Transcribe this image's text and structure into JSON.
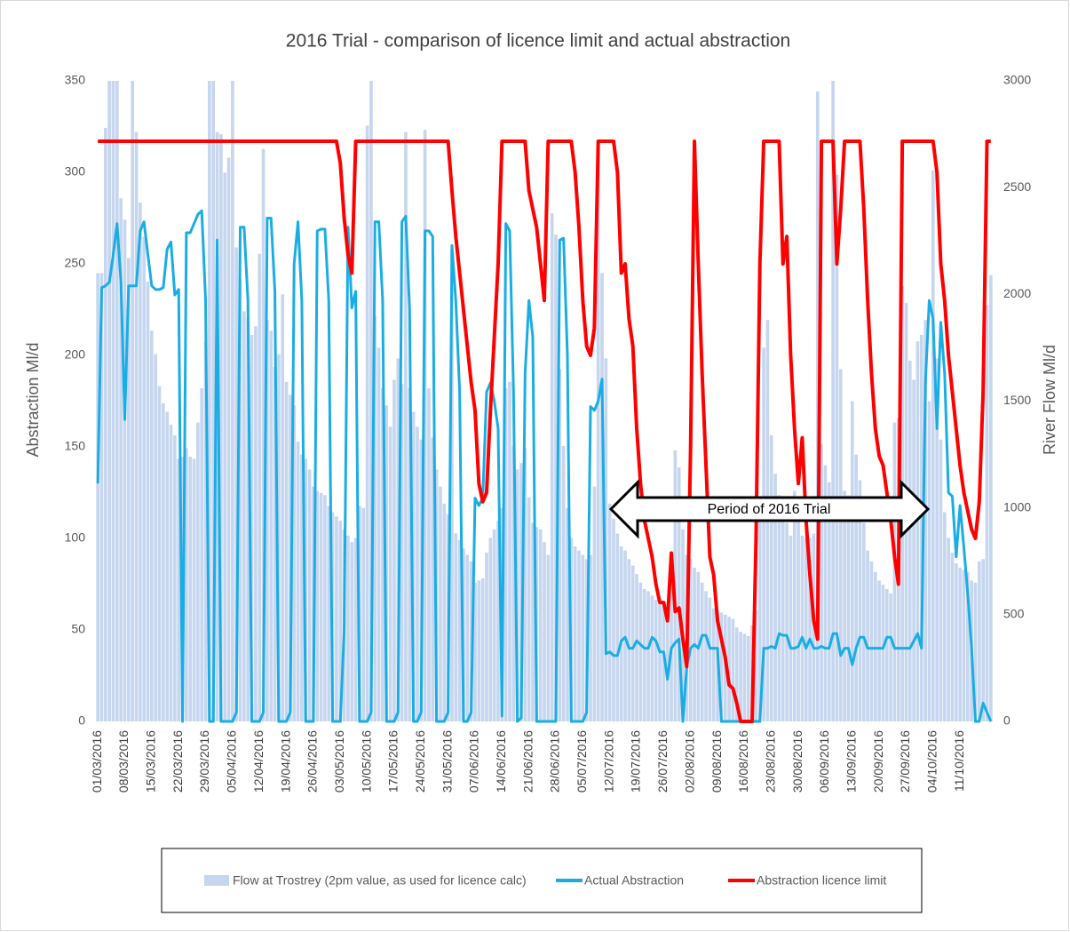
{
  "chart_data": {
    "type": "combo",
    "title": "2016 Trial - comparison of licence limit and actual abstraction",
    "ylabel": "Abstraction Ml/d",
    "y2label": "River Flow Ml/d",
    "annotation": "Period of 2016 Trial",
    "grid": false,
    "ylim": [
      0,
      350
    ],
    "yticks": [
      0,
      50,
      100,
      150,
      200,
      250,
      300,
      350
    ],
    "y2lim": [
      0,
      3000
    ],
    "y2ticks": [
      0,
      500,
      1000,
      1500,
      2000,
      2500,
      3000
    ],
    "categories": [
      "01/03/2016",
      null,
      null,
      null,
      null,
      null,
      null,
      "08/03/2016",
      null,
      null,
      null,
      null,
      null,
      null,
      "15/03/2016",
      null,
      null,
      null,
      null,
      null,
      null,
      "22/03/2016",
      null,
      null,
      null,
      null,
      null,
      null,
      "29/03/2016",
      null,
      null,
      null,
      null,
      null,
      null,
      "05/04/2016",
      null,
      null,
      null,
      null,
      null,
      null,
      "12/04/2016",
      null,
      null,
      null,
      null,
      null,
      null,
      "19/04/2016",
      null,
      null,
      null,
      null,
      null,
      null,
      "26/04/2016",
      null,
      null,
      null,
      null,
      null,
      null,
      "03/05/2016",
      null,
      null,
      null,
      null,
      null,
      null,
      "10/05/2016",
      null,
      null,
      null,
      null,
      null,
      null,
      "17/05/2016",
      null,
      null,
      null,
      null,
      null,
      null,
      "24/05/2016",
      null,
      null,
      null,
      null,
      null,
      null,
      "31/05/2016",
      null,
      null,
      null,
      null,
      null,
      null,
      "07/06/2016",
      null,
      null,
      null,
      null,
      null,
      null,
      "14/06/2016",
      null,
      null,
      null,
      null,
      null,
      null,
      "21/06/2016",
      null,
      null,
      null,
      null,
      null,
      null,
      "28/06/2016",
      null,
      null,
      null,
      null,
      null,
      null,
      "05/07/2016",
      null,
      null,
      null,
      null,
      null,
      null,
      "12/07/2016",
      null,
      null,
      null,
      null,
      null,
      null,
      "19/07/2016",
      null,
      null,
      null,
      null,
      null,
      null,
      "26/07/2016",
      null,
      null,
      null,
      null,
      null,
      null,
      "02/08/2016",
      null,
      null,
      null,
      null,
      null,
      null,
      "09/08/2016",
      null,
      null,
      null,
      null,
      null,
      null,
      "16/08/2016",
      null,
      null,
      null,
      null,
      null,
      null,
      "23/08/2016",
      null,
      null,
      null,
      null,
      null,
      null,
      "30/08/2016",
      null,
      null,
      null,
      null,
      null,
      null,
      "06/09/2016",
      null,
      null,
      null,
      null,
      null,
      null,
      "13/09/2016",
      null,
      null,
      null,
      null,
      null,
      null,
      "20/09/2016",
      null,
      null,
      null,
      null,
      null,
      null,
      "27/09/2016",
      null,
      null,
      null,
      null,
      null,
      null,
      "04/10/2016",
      null,
      null,
      null,
      null,
      null,
      null,
      "11/10/2016",
      null,
      null,
      null,
      null,
      null,
      null,
      null,
      null
    ],
    "series": [
      {
        "name": "Flow at Trostrey (2pm value, as used for licence calc)",
        "type": "bar",
        "axis": "y2",
        "color": "#c6d6ef",
        "values": [
          2100,
          2100,
          2780,
          3000,
          3000,
          3000,
          2450,
          2350,
          2170,
          3000,
          2760,
          2430,
          2270,
          2060,
          1830,
          1720,
          1570,
          1490,
          1450,
          1390,
          1340,
          1230,
          1240,
          1280,
          1240,
          1230,
          1400,
          1560,
          1780,
          3000,
          3000,
          2760,
          2750,
          2570,
          2640,
          3000,
          2220,
          2070,
          1920,
          1890,
          1810,
          1850,
          2190,
          2680,
          1880,
          1830,
          1660,
          1720,
          2000,
          1590,
          1530,
          1480,
          1310,
          1250,
          1230,
          1180,
          1100,
          1080,
          1070,
          1060,
          1010,
          980,
          960,
          940,
          900,
          870,
          840,
          860,
          1010,
          1000,
          2790,
          3000,
          1900,
          1750,
          1560,
          1480,
          1380,
          1600,
          1700,
          1580,
          2760,
          1560,
          1450,
          1380,
          1320,
          2770,
          1560,
          1330,
          1180,
          1100,
          1020,
          970,
          2210,
          880,
          850,
          810,
          780,
          750,
          650,
          660,
          670,
          790,
          860,
          900,
          940,
          1000,
          1560,
          1590,
          1290,
          1180,
          1210,
          1280,
          1050,
          930,
          910,
          900,
          840,
          780,
          2380,
          2280,
          1650,
          1290,
          1000,
          860,
          820,
          800,
          780,
          760,
          780,
          1100,
          2700,
          2100,
          1700,
          1020,
          950,
          880,
          820,
          800,
          760,
          730,
          690,
          650,
          620,
          610,
          590,
          570,
          560,
          540,
          530,
          660,
          1270,
          1190,
          900,
          780,
          760,
          720,
          700,
          650,
          610,
          580,
          530,
          520,
          510,
          500,
          490,
          480,
          440,
          420,
          410,
          400,
          450,
          520,
          1040,
          1750,
          1880,
          1340,
          1160,
          1060,
          980,
          930,
          870,
          1080,
          1010,
          870,
          860,
          860,
          880,
          2950,
          1300,
          1200,
          1120,
          3000,
          2560,
          1650,
          1080,
          1060,
          1500,
          1250,
          1130,
          930,
          800,
          750,
          700,
          660,
          640,
          620,
          600,
          1400,
          1420,
          2040,
          1960,
          1690,
          1600,
          1780,
          1810,
          1880,
          1500,
          2580,
          1700,
          1320,
          980,
          860,
          790,
          740,
          720,
          710,
          700,
          660,
          650,
          750,
          760,
          1950,
          2090
        ]
      },
      {
        "name": "Actual Abstraction",
        "type": "line",
        "color": "#1aade4",
        "values": [
          130,
          237,
          238,
          240,
          255,
          272,
          240,
          165,
          238,
          238,
          238,
          268,
          273,
          255,
          238,
          236,
          236,
          237,
          258,
          262,
          233,
          236,
          0,
          267,
          267,
          272,
          277,
          279,
          230,
          0,
          0,
          263,
          0,
          0,
          0,
          0,
          5,
          270,
          270,
          230,
          0,
          0,
          0,
          5,
          275,
          275,
          235,
          0,
          0,
          0,
          5,
          250,
          273,
          230,
          0,
          0,
          0,
          268,
          269,
          269,
          230,
          0,
          0,
          0,
          50,
          270,
          226,
          235,
          0,
          0,
          0,
          5,
          273,
          273,
          230,
          0,
          0,
          0,
          5,
          273,
          276,
          225,
          0,
          0,
          5,
          268,
          268,
          265,
          0,
          0,
          0,
          5,
          260,
          230,
          180,
          0,
          0,
          5,
          122,
          118,
          122,
          180,
          185,
          175,
          160,
          3,
          272,
          268,
          180,
          0,
          2,
          190,
          230,
          210,
          0,
          0,
          0,
          0,
          0,
          0,
          263,
          264,
          200,
          0,
          0,
          0,
          0,
          5,
          172,
          170,
          175,
          187,
          37,
          38,
          36,
          36,
          44,
          46,
          40,
          40,
          44,
          42,
          40,
          40,
          46,
          44,
          38,
          38,
          23,
          40,
          43,
          45,
          0,
          30,
          40,
          42,
          40,
          47,
          47,
          40,
          40,
          40,
          0,
          0,
          0,
          0,
          0,
          0,
          0,
          0,
          0,
          0,
          0,
          40,
          40,
          41,
          40,
          48,
          47,
          47,
          40,
          40,
          41,
          46,
          40,
          45,
          40,
          40,
          41,
          40,
          40,
          48,
          48,
          36,
          40,
          40,
          31,
          40,
          46,
          46,
          40,
          40,
          40,
          40,
          40,
          46,
          46,
          40,
          40,
          40,
          40,
          40,
          44,
          48,
          40,
          185,
          230,
          220,
          160,
          218,
          190,
          125,
          123,
          90,
          118,
          95,
          70,
          40,
          0,
          0,
          10,
          5,
          0
        ]
      },
      {
        "name": "Abstraction licence limit",
        "type": "line",
        "color": "#ff0000",
        "values": [
          317,
          317,
          317,
          317,
          317,
          317,
          317,
          317,
          317,
          317,
          317,
          317,
          317,
          317,
          317,
          317,
          317,
          317,
          317,
          317,
          317,
          317,
          317,
          317,
          317,
          317,
          317,
          317,
          317,
          317,
          317,
          317,
          317,
          317,
          317,
          317,
          317,
          317,
          317,
          317,
          317,
          317,
          317,
          317,
          317,
          317,
          317,
          317,
          317,
          317,
          317,
          317,
          317,
          317,
          317,
          317,
          317,
          317,
          317,
          317,
          317,
          317,
          317,
          305,
          275,
          255,
          245,
          317,
          317,
          317,
          317,
          317,
          317,
          317,
          317,
          317,
          317,
          317,
          317,
          317,
          317,
          317,
          317,
          317,
          317,
          317,
          317,
          317,
          317,
          317,
          317,
          317,
          290,
          265,
          245,
          225,
          205,
          185,
          170,
          130,
          120,
          125,
          170,
          210,
          250,
          317,
          317,
          317,
          317,
          317,
          317,
          317,
          290,
          280,
          270,
          250,
          230,
          317,
          317,
          317,
          317,
          317,
          317,
          317,
          300,
          270,
          230,
          205,
          200,
          215,
          317,
          317,
          317,
          317,
          317,
          300,
          245,
          250,
          220,
          205,
          160,
          130,
          110,
          100,
          90,
          75,
          65,
          65,
          55,
          92,
          60,
          62,
          45,
          30,
          150,
          317,
          250,
          190,
          140,
          90,
          80,
          55,
          45,
          35,
          20,
          18,
          10,
          0,
          0,
          0,
          0,
          100,
          250,
          317,
          317,
          317,
          317,
          317,
          250,
          265,
          200,
          160,
          130,
          155,
          110,
          80,
          55,
          45,
          317,
          317,
          317,
          317,
          250,
          280,
          317,
          317,
          317,
          317,
          317,
          280,
          230,
          190,
          160,
          145,
          140,
          125,
          110,
          90,
          75,
          317,
          317,
          317,
          317,
          317,
          317,
          317,
          317,
          317,
          300,
          250,
          230,
          200,
          180,
          160,
          140,
          125,
          115,
          105,
          100,
          120,
          180,
          317,
          317
        ]
      }
    ]
  }
}
